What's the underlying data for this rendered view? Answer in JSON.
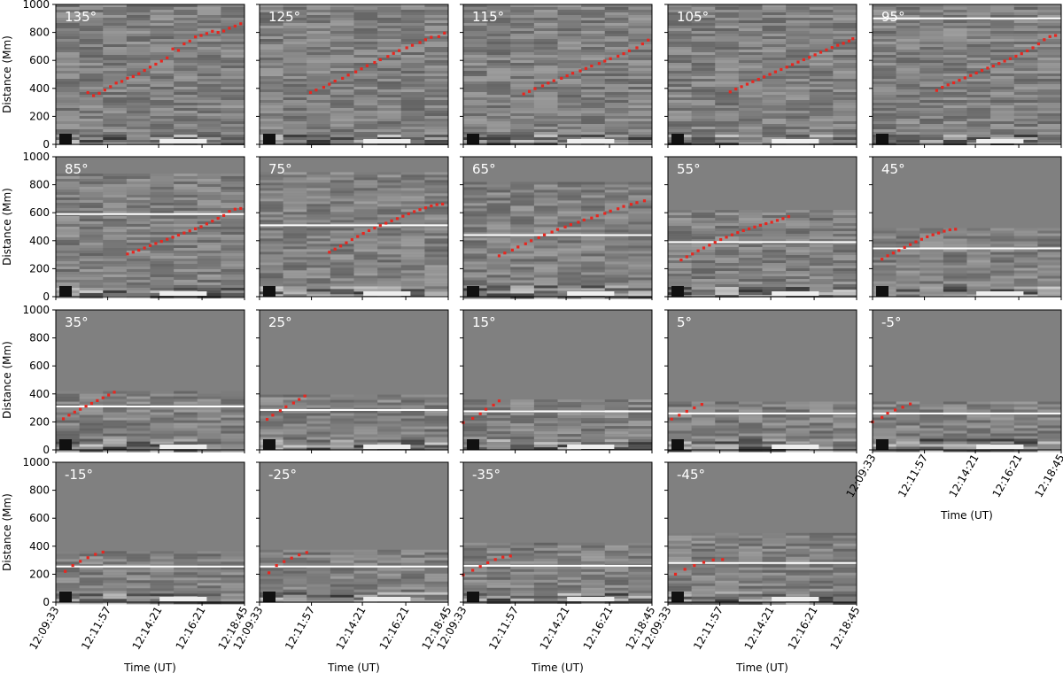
{
  "figure": {
    "type": "time-distance-grid",
    "y_axis": {
      "label": "Distance (Mm)",
      "range": [
        0,
        1000
      ],
      "ticks": [
        "0",
        "200",
        "400",
        "600",
        "800",
        "1000"
      ]
    },
    "x_axis": {
      "label": "Time (UT)",
      "ticks": [
        "12:09:33",
        "12:11:57",
        "12:14:21",
        "12:16:21",
        "12:18:45"
      ]
    },
    "colors": {
      "marker": "#e8261f",
      "panel_bg": "#808080",
      "reference_line": "#ffffff"
    }
  },
  "chart_data": [
    {
      "type": "scatter",
      "title": "135°",
      "ref_line": null,
      "region_top": 1000,
      "x": [
        0.17,
        0.2,
        0.23,
        0.26,
        0.29,
        0.32,
        0.35,
        0.38,
        0.41,
        0.44,
        0.47,
        0.5,
        0.53,
        0.56,
        0.59,
        0.62,
        0.65,
        0.68,
        0.71,
        0.74,
        0.77,
        0.8,
        0.83,
        0.86,
        0.89,
        0.92,
        0.95,
        0.98
      ],
      "y": [
        370,
        348,
        365,
        388,
        412,
        438,
        450,
        473,
        485,
        505,
        528,
        552,
        573,
        595,
        618,
        682,
        672,
        718,
        738,
        768,
        778,
        792,
        808,
        800,
        810,
        830,
        845,
        862
      ]
    },
    {
      "type": "scatter",
      "title": "125°",
      "ref_line": null,
      "region_top": 1000,
      "x": [
        0.27,
        0.3,
        0.34,
        0.37,
        0.4,
        0.44,
        0.47,
        0.51,
        0.54,
        0.57,
        0.61,
        0.64,
        0.68,
        0.71,
        0.74,
        0.78,
        0.81,
        0.85,
        0.88,
        0.91,
        0.95,
        0.98
      ],
      "y": [
        370,
        388,
        408,
        430,
        452,
        472,
        495,
        518,
        540,
        562,
        585,
        605,
        628,
        650,
        670,
        690,
        708,
        728,
        748,
        765,
        770,
        795
      ]
    },
    {
      "type": "scatter",
      "title": "115°",
      "ref_line": null,
      "region_top": 1000,
      "x": [
        0.32,
        0.35,
        0.38,
        0.42,
        0.45,
        0.48,
        0.52,
        0.55,
        0.58,
        0.62,
        0.65,
        0.68,
        0.72,
        0.75,
        0.78,
        0.82,
        0.85,
        0.88,
        0.92,
        0.95,
        0.98
      ],
      "y": [
        360,
        378,
        398,
        418,
        438,
        455,
        472,
        490,
        508,
        525,
        542,
        560,
        578,
        595,
        612,
        630,
        648,
        668,
        690,
        718,
        745
      ]
    },
    {
      "type": "scatter",
      "title": "105°",
      "ref_line": null,
      "region_top": 1000,
      "x": [
        0.33,
        0.36,
        0.39,
        0.42,
        0.45,
        0.48,
        0.51,
        0.54,
        0.57,
        0.6,
        0.63,
        0.66,
        0.69,
        0.72,
        0.75,
        0.78,
        0.81,
        0.84,
        0.87,
        0.9,
        0.93,
        0.96,
        0.98
      ],
      "y": [
        375,
        395,
        412,
        430,
        448,
        465,
        482,
        500,
        518,
        535,
        552,
        570,
        588,
        605,
        622,
        640,
        658,
        675,
        692,
        708,
        722,
        738,
        755
      ]
    },
    {
      "type": "scatter",
      "title": "95°",
      "ref_line": 900,
      "region_top": 1000,
      "x": [
        0.34,
        0.37,
        0.4,
        0.43,
        0.46,
        0.49,
        0.52,
        0.55,
        0.58,
        0.61,
        0.64,
        0.67,
        0.7,
        0.73,
        0.76,
        0.79,
        0.82,
        0.85,
        0.88,
        0.91,
        0.94,
        0.97
      ],
      "y": [
        385,
        408,
        425,
        440,
        458,
        475,
        492,
        510,
        528,
        545,
        560,
        578,
        595,
        612,
        630,
        648,
        668,
        690,
        718,
        748,
        770,
        778
      ]
    },
    {
      "type": "scatter",
      "title": "85°",
      "ref_line": 590,
      "region_top": 880,
      "x": [
        0.38,
        0.41,
        0.44,
        0.47,
        0.5,
        0.53,
        0.56,
        0.59,
        0.62,
        0.65,
        0.68,
        0.71,
        0.74,
        0.77,
        0.8,
        0.83,
        0.86,
        0.89,
        0.92,
        0.95,
        0.98
      ],
      "y": [
        305,
        318,
        332,
        348,
        365,
        380,
        395,
        410,
        425,
        440,
        455,
        470,
        485,
        500,
        520,
        540,
        560,
        580,
        610,
        625,
        630
      ]
    },
    {
      "type": "scatter",
      "title": "75°",
      "ref_line": 510,
      "region_top": 890,
      "x": [
        0.37,
        0.4,
        0.43,
        0.46,
        0.49,
        0.52,
        0.55,
        0.58,
        0.61,
        0.64,
        0.67,
        0.7,
        0.73,
        0.76,
        0.79,
        0.82,
        0.85,
        0.88,
        0.91,
        0.94,
        0.97
      ],
      "y": [
        318,
        340,
        362,
        385,
        408,
        430,
        452,
        472,
        490,
        508,
        525,
        542,
        558,
        575,
        592,
        608,
        622,
        635,
        648,
        658,
        662
      ]
    },
    {
      "type": "scatter",
      "title": "65°",
      "ref_line": 440,
      "region_top": 820,
      "x": [
        0.19,
        0.22,
        0.26,
        0.29,
        0.33,
        0.36,
        0.4,
        0.43,
        0.47,
        0.5,
        0.54,
        0.57,
        0.61,
        0.64,
        0.68,
        0.71,
        0.75,
        0.78,
        0.82,
        0.85,
        0.89,
        0.92,
        0.96
      ],
      "y": [
        292,
        312,
        333,
        355,
        378,
        400,
        422,
        442,
        462,
        480,
        498,
        515,
        532,
        548,
        562,
        578,
        595,
        612,
        628,
        645,
        660,
        672,
        685
      ]
    },
    {
      "type": "scatter",
      "title": "55°",
      "ref_line": 390,
      "region_top": 620,
      "x": [
        0.07,
        0.1,
        0.13,
        0.16,
        0.19,
        0.22,
        0.25,
        0.28,
        0.31,
        0.34,
        0.37,
        0.4,
        0.43,
        0.46,
        0.49,
        0.52,
        0.55,
        0.58,
        0.61,
        0.64
      ],
      "y": [
        262,
        285,
        305,
        328,
        348,
        368,
        388,
        408,
        425,
        442,
        458,
        472,
        485,
        498,
        510,
        522,
        532,
        545,
        558,
        572
      ]
    },
    {
      "type": "scatter",
      "title": "45°",
      "ref_line": 345,
      "region_top": 490,
      "x": [
        0.05,
        0.08,
        0.11,
        0.14,
        0.17,
        0.2,
        0.23,
        0.26,
        0.29,
        0.32,
        0.35,
        0.38,
        0.41,
        0.44
      ],
      "y": [
        268,
        292,
        312,
        330,
        352,
        372,
        392,
        410,
        428,
        442,
        455,
        468,
        478,
        482
      ]
    },
    {
      "type": "scatter",
      "title": "35°",
      "ref_line": 310,
      "region_top": 420,
      "x": [
        0.04,
        0.07,
        0.1,
        0.13,
        0.16,
        0.19,
        0.22,
        0.25,
        0.28,
        0.31
      ],
      "y": [
        222,
        248,
        270,
        290,
        312,
        332,
        352,
        372,
        392,
        412
      ]
    },
    {
      "type": "scatter",
      "title": "25°",
      "ref_line": 285,
      "region_top": 395,
      "x": [
        0.04,
        0.07,
        0.11,
        0.14,
        0.18,
        0.21,
        0.24
      ],
      "y": [
        218,
        248,
        280,
        308,
        335,
        360,
        385
      ]
    },
    {
      "type": "scatter",
      "title": "15°",
      "ref_line": 275,
      "region_top": 360,
      "x": [
        0.0,
        0.05,
        0.09,
        0.12,
        0.16,
        0.19
      ],
      "y": [
        195,
        225,
        258,
        290,
        320,
        350
      ]
    },
    {
      "type": "scatter",
      "title": "5°",
      "ref_line": 260,
      "region_top": 345,
      "x": [
        0.02,
        0.06,
        0.1,
        0.14,
        0.18
      ],
      "y": [
        220,
        248,
        275,
        300,
        325
      ]
    },
    {
      "type": "scatter",
      "title": "-5°",
      "ref_line": 260,
      "region_top": 345,
      "x": [
        0.0,
        0.05,
        0.08,
        0.12,
        0.16,
        0.2
      ],
      "y": [
        200,
        232,
        262,
        285,
        305,
        328
      ]
    },
    {
      "type": "scatter",
      "title": "-15°",
      "ref_line": 255,
      "region_top": 365,
      "x": [
        0.05,
        0.09,
        0.13,
        0.17,
        0.21,
        0.25
      ],
      "y": [
        220,
        262,
        292,
        318,
        342,
        358
      ]
    },
    {
      "type": "scatter",
      "title": "-25°",
      "ref_line": 255,
      "region_top": 375,
      "x": [
        0.05,
        0.09,
        0.13,
        0.17,
        0.21,
        0.25
      ],
      "y": [
        210,
        262,
        290,
        315,
        338,
        355
      ]
    },
    {
      "type": "scatter",
      "title": "-35°",
      "ref_line": 260,
      "region_top": 425,
      "x": [
        0.0,
        0.05,
        0.09,
        0.13,
        0.17,
        0.21,
        0.25
      ],
      "y": [
        195,
        228,
        255,
        282,
        305,
        322,
        330
      ]
    },
    {
      "type": "scatter",
      "title": "-45°",
      "ref_line": 280,
      "region_top": 495,
      "x": [
        0.04,
        0.09,
        0.14,
        0.19,
        0.24,
        0.29
      ],
      "y": [
        200,
        235,
        262,
        285,
        302,
        305
      ]
    }
  ]
}
